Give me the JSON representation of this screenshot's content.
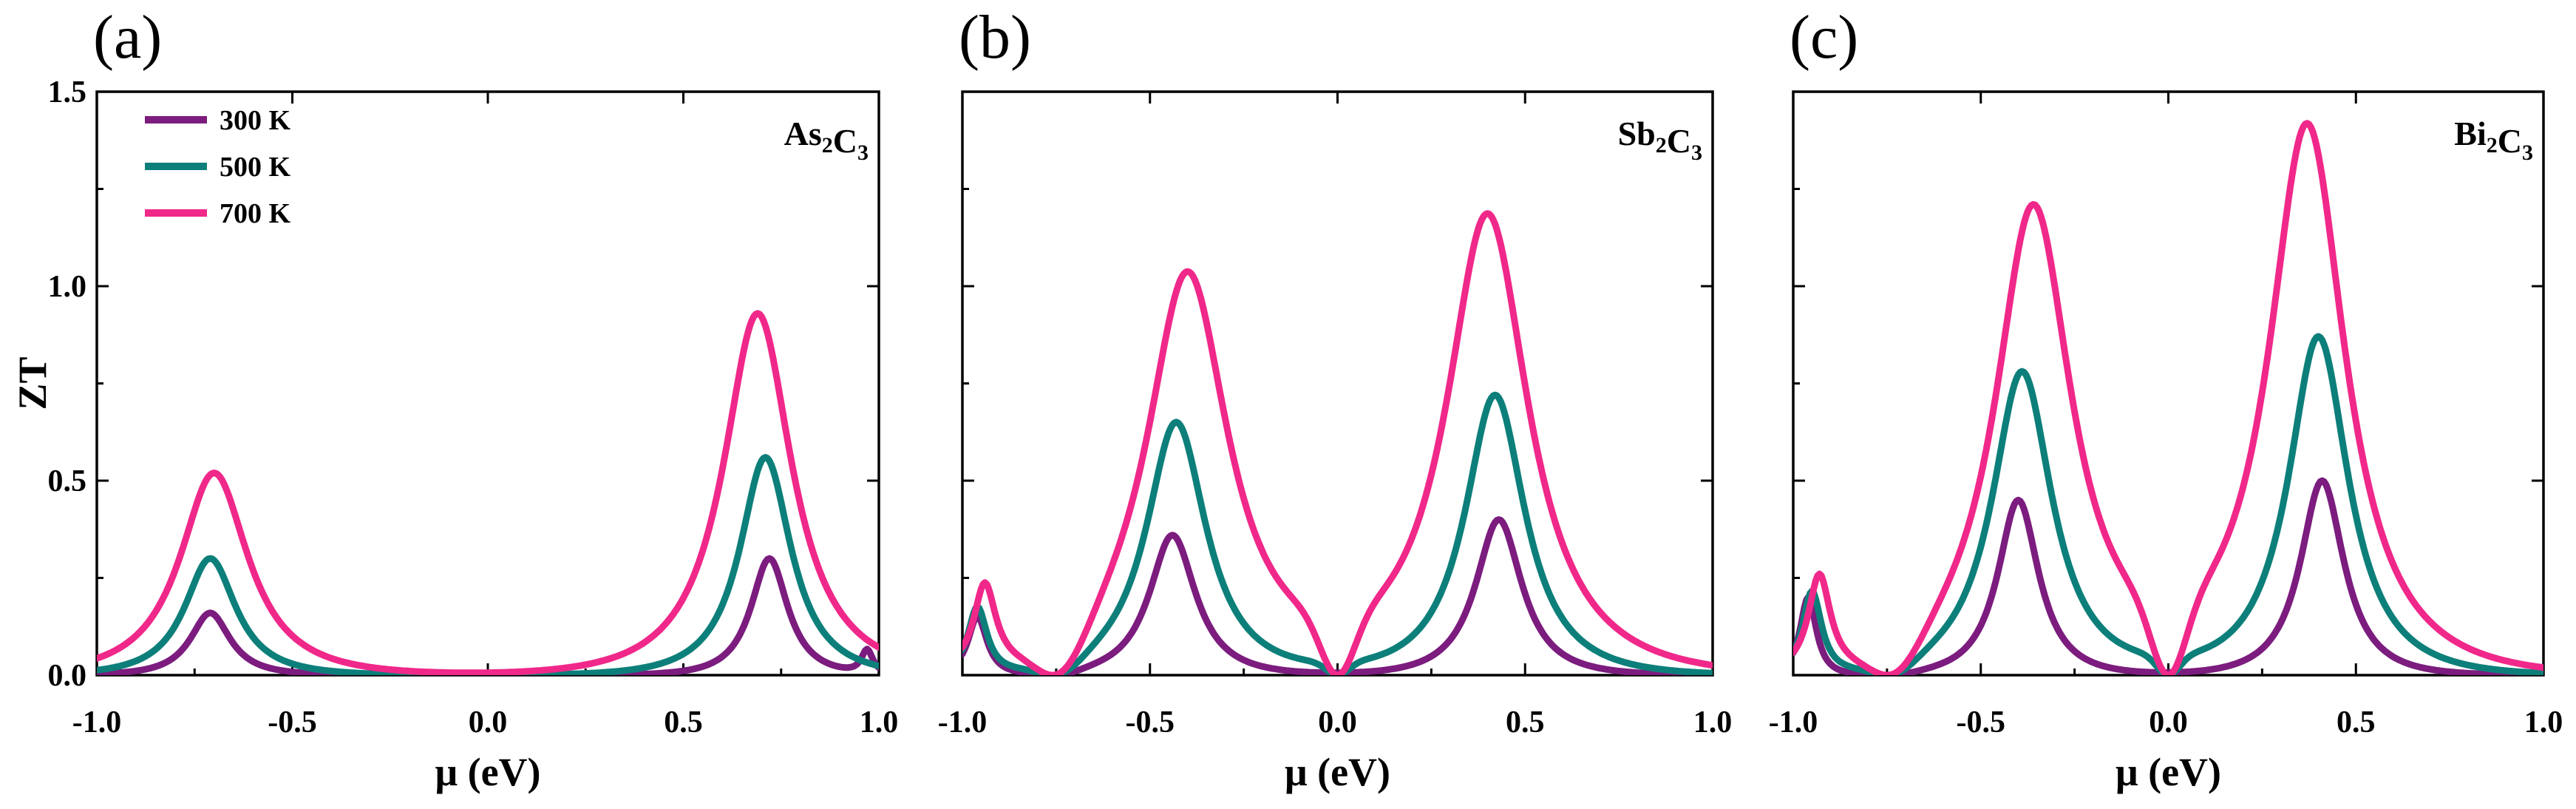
{
  "colors": {
    "300 K": "#7b1c7e",
    "500 K": "#0d7f7a",
    "700 K": "#f0288a"
  },
  "chart_data": [
    {
      "type": "line",
      "panel": "(a)",
      "compound": {
        "base1": "As",
        "sub1": "2",
        "base2": "C",
        "sub2": "3"
      },
      "xlabel": "μ (eV)",
      "ylabel": "ZT",
      "xlim": [
        -1.0,
        1.0
      ],
      "ylim": [
        0.0,
        1.5
      ],
      "xticks": [
        "-1.0",
        "-0.5",
        "0.0",
        "0.5",
        "1.0"
      ],
      "yticks": [
        "0.0",
        "0.5",
        "1.0",
        "1.5"
      ],
      "legend": [
        "300 K",
        "500 K",
        "700 K"
      ],
      "legend_position": "top-left",
      "series": [
        {
          "name": "300 K",
          "peaks": [
            [
              -0.71,
              0.16,
              0.07
            ],
            [
              0.72,
              0.3,
              0.065
            ]
          ],
          "bumps": [
            [
              0.97,
              0.06,
              0.02
            ]
          ],
          "dips": []
        },
        {
          "name": "500 K",
          "peaks": [
            [
              -0.71,
              0.3,
              0.09
            ],
            [
              0.71,
              0.56,
              0.09
            ]
          ],
          "bumps": [],
          "dips": []
        },
        {
          "name": "700 K",
          "peaks": [
            [
              -0.7,
              0.52,
              0.12
            ],
            [
              0.69,
              0.93,
              0.12
            ]
          ],
          "bumps": [],
          "dips": []
        }
      ]
    },
    {
      "type": "line",
      "panel": "(b)",
      "compound": {
        "base1": "Sb",
        "sub1": "2",
        "base2": "C",
        "sub2": "3"
      },
      "xlabel": "μ (eV)",
      "xlim": [
        -1.0,
        1.0
      ],
      "ylim": [
        0.0,
        1.5
      ],
      "xticks": [
        "-1.0",
        "-0.5",
        "0.0",
        "0.5",
        "1.0"
      ],
      "series": [
        {
          "name": "300 K",
          "peaks": [
            [
              -0.44,
              0.36,
              0.085
            ],
            [
              0.43,
              0.4,
              0.085
            ],
            [
              -0.96,
              0.15,
              0.035
            ]
          ],
          "bumps": [],
          "dips": [
            [
              -0.76,
              0.1
            ]
          ]
        },
        {
          "name": "500 K",
          "peaks": [
            [
              -0.43,
              0.65,
              0.11
            ],
            [
              0.42,
              0.72,
              0.11
            ],
            [
              -0.96,
              0.17,
              0.035
            ]
          ],
          "bumps": [],
          "dips": [
            [
              -0.76,
              0.11
            ],
            [
              0.0,
              0.06
            ]
          ]
        },
        {
          "name": "700 K",
          "peaks": [
            [
              -0.4,
              1.03,
              0.15
            ],
            [
              0.4,
              1.18,
              0.15
            ],
            [
              -0.94,
              0.21,
              0.04
            ]
          ],
          "bumps": [],
          "dips": [
            [
              -0.76,
              0.13
            ],
            [
              0.0,
              0.09
            ]
          ]
        }
      ]
    },
    {
      "type": "line",
      "panel": "(c)",
      "compound": {
        "base1": "Bi",
        "sub1": "2",
        "base2": "C",
        "sub2": "3"
      },
      "xlabel": "μ (eV)",
      "xlim": [
        -1.0,
        1.0
      ],
      "ylim": [
        0.0,
        1.5
      ],
      "xticks": [
        "-1.0",
        "-0.5",
        "0.0",
        "0.5",
        "1.0"
      ],
      "series": [
        {
          "name": "300 K",
          "peaks": [
            [
              -0.4,
              0.45,
              0.075
            ],
            [
              0.41,
              0.5,
              0.08
            ],
            [
              -0.96,
              0.2,
              0.03
            ]
          ],
          "bumps": [],
          "dips": [
            [
              -0.75,
              0.1
            ]
          ]
        },
        {
          "name": "500 K",
          "peaks": [
            [
              -0.39,
              0.78,
              0.11
            ],
            [
              0.4,
              0.87,
              0.11
            ],
            [
              -0.95,
              0.21,
              0.035
            ]
          ],
          "bumps": [],
          "dips": [
            [
              -0.75,
              0.11
            ],
            [
              0.0,
              0.06
            ]
          ]
        },
        {
          "name": "700 K",
          "peaks": [
            [
              -0.36,
              1.2,
              0.14
            ],
            [
              0.37,
              1.41,
              0.14
            ],
            [
              -0.93,
              0.24,
              0.04
            ]
          ],
          "bumps": [],
          "dips": [
            [
              -0.75,
              0.13
            ],
            [
              0.0,
              0.09
            ]
          ]
        }
      ]
    }
  ]
}
